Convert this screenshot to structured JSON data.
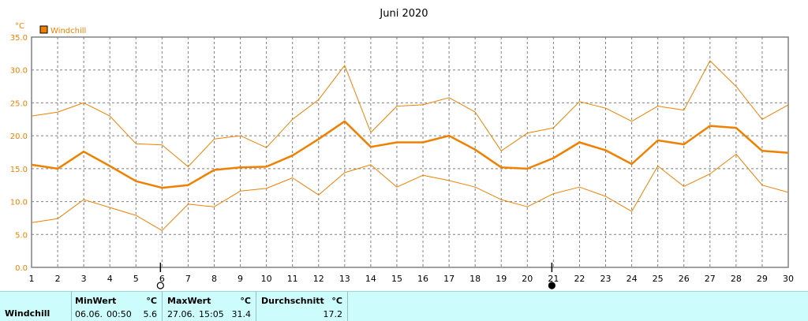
{
  "chart_data": {
    "type": "line",
    "title": "Juni 2020",
    "ylabel": "°C",
    "legend": "top-left",
    "grid": true,
    "ylim": [
      0,
      35
    ],
    "yticks": [
      "0.0",
      "5.0",
      "10.0",
      "15.0",
      "20.0",
      "25.0",
      "30.0",
      "35.0"
    ],
    "categories": [
      "1",
      "2",
      "3",
      "4",
      "5",
      "6",
      "7",
      "8",
      "9",
      "10",
      "11",
      "12",
      "13",
      "14",
      "15",
      "16",
      "17",
      "18",
      "19",
      "20",
      "21",
      "22",
      "23",
      "24",
      "25",
      "26",
      "27",
      "28",
      "29",
      "30"
    ],
    "series": [
      {
        "name": "Windchill",
        "role": "mean",
        "values": [
          15.6,
          15.0,
          17.6,
          15.4,
          13.1,
          12.1,
          12.5,
          14.8,
          15.2,
          15.3,
          17.0,
          19.5,
          22.2,
          18.3,
          19.0,
          19.0,
          20.0,
          17.9,
          15.2,
          15.0,
          16.6,
          19.0,
          17.8,
          15.7,
          19.3,
          18.7,
          21.5,
          21.2,
          17.7,
          17.4
        ]
      },
      {
        "role": "max",
        "values": [
          23.0,
          23.6,
          25.0,
          23.0,
          18.8,
          18.6,
          15.3,
          19.5,
          20.0,
          18.2,
          22.5,
          25.5,
          30.7,
          20.5,
          24.5,
          24.7,
          25.8,
          23.6,
          17.7,
          20.4,
          21.2,
          25.2,
          24.2,
          22.2,
          24.5,
          23.9,
          31.4,
          27.5,
          22.5,
          24.7
        ]
      },
      {
        "role": "min",
        "values": [
          6.8,
          7.4,
          10.3,
          9.1,
          7.9,
          5.6,
          9.6,
          9.2,
          11.6,
          12.0,
          13.6,
          11.0,
          14.4,
          15.6,
          12.2,
          14.0,
          13.2,
          12.2,
          10.3,
          9.2,
          11.2,
          12.2,
          10.8,
          8.5,
          15.4,
          12.3,
          14.2,
          17.2,
          12.5,
          11.4
        ]
      }
    ],
    "colors": {
      "line": "#f08000",
      "grid": "#808080",
      "frame": "#808080"
    },
    "moon_phases": [
      {
        "day": 6,
        "phase": "full"
      },
      {
        "day": 21,
        "phase": "new"
      }
    ]
  },
  "summary": {
    "row_label": "Windchill",
    "min": {
      "header": "MinWert",
      "unit": "°C",
      "date": "06.06.",
      "time": "00:50",
      "value": "5.6"
    },
    "max": {
      "header": "MaxWert",
      "unit": "°C",
      "date": "27.06.",
      "time": "15:05",
      "value": "31.4"
    },
    "avg": {
      "header": "Durchschnitt",
      "unit": "°C",
      "value": "17.2"
    }
  }
}
